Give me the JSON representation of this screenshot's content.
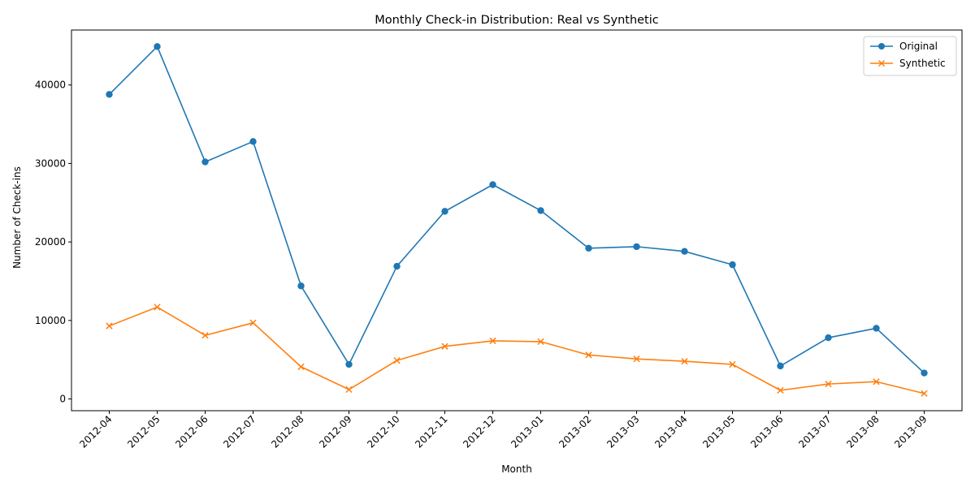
{
  "chart_data": {
    "type": "line",
    "title": "Monthly Check-in Distribution: Real vs Synthetic",
    "xlabel": "Month",
    "ylabel": "Number of Check-ins",
    "categories": [
      "2012-04",
      "2012-05",
      "2012-06",
      "2012-07",
      "2012-08",
      "2012-09",
      "2012-10",
      "2012-11",
      "2012-12",
      "2013-01",
      "2013-02",
      "2013-03",
      "2013-04",
      "2013-05",
      "2013-06",
      "2013-07",
      "2013-08",
      "2013-09"
    ],
    "series": [
      {
        "name": "Original",
        "color": "#1f77b4",
        "marker": "circle",
        "values": [
          38800,
          44900,
          30200,
          32800,
          14400,
          4400,
          16900,
          23900,
          27300,
          24000,
          19200,
          19400,
          18800,
          17100,
          4200,
          7800,
          9000,
          3300
        ]
      },
      {
        "name": "Synthetic",
        "color": "#ff7f0e",
        "marker": "x",
        "values": [
          9300,
          11700,
          8100,
          9700,
          4100,
          1200,
          4900,
          6700,
          7400,
          7300,
          5600,
          5100,
          4800,
          4400,
          1100,
          1900,
          2200,
          700
        ]
      }
    ],
    "ylim": [
      -1500,
      47000
    ],
    "yticks": [
      0,
      10000,
      20000,
      30000,
      40000
    ],
    "grid": false,
    "legend_position": "top-right"
  }
}
